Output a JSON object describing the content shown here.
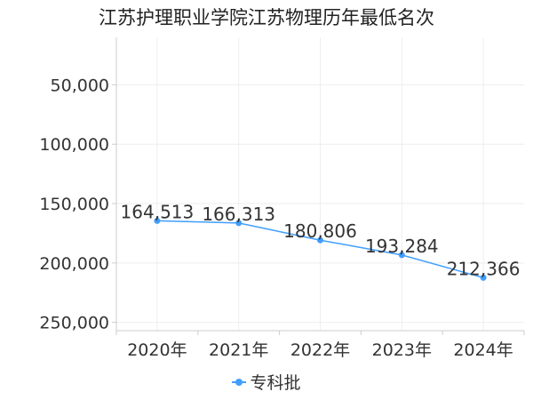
{
  "chart_data": {
    "type": "line",
    "title": "江苏护理职业学院江苏物理历年最低名次",
    "categories": [
      "2020年",
      "2021年",
      "2022年",
      "2023年",
      "2024年"
    ],
    "series": [
      {
        "name": "专科批",
        "values": [
          164513,
          166313,
          180806,
          193284,
          212366
        ],
        "labels": [
          "164,513",
          "166,313",
          "180,806",
          "193,284",
          "212,366"
        ]
      }
    ],
    "y_ticks": [
      50000,
      100000,
      150000,
      200000,
      250000
    ],
    "y_tick_labels": [
      "50,000",
      "100,000",
      "150,000",
      "200,000",
      "250,000"
    ],
    "ylim": [
      10000,
      257000
    ],
    "y_inverted": true,
    "grid": true,
    "legend_position": "bottom",
    "colors": {
      "series": "#409eff",
      "grid": "#eeeeee",
      "axis": "#cccccc",
      "text": "#333333"
    }
  }
}
